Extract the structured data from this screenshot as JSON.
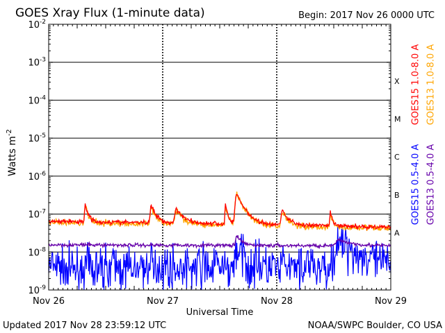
{
  "chart_data": {
    "type": "line",
    "title": "GOES Xray Flux (1-minute data)",
    "begin_label": "Begin:  2017 Nov 26 0000 UTC",
    "xlabel": "Universal Time",
    "ylabel_text": "Watts m",
    "ylabel_sup": "-2",
    "y_scale": "log",
    "ylim": [
      1e-09,
      0.01
    ],
    "y_ticks": [
      {
        "value": 0.01,
        "base": "10",
        "exp": "-2"
      },
      {
        "value": 0.001,
        "base": "10",
        "exp": "-3"
      },
      {
        "value": 0.0001,
        "base": "10",
        "exp": "-4"
      },
      {
        "value": 1e-05,
        "base": "10",
        "exp": "-5"
      },
      {
        "value": 1e-06,
        "base": "10",
        "exp": "-6"
      },
      {
        "value": 1e-07,
        "base": "10",
        "exp": "-7"
      },
      {
        "value": 1e-08,
        "base": "10",
        "exp": "-8"
      },
      {
        "value": 1e-09,
        "base": "10",
        "exp": "-9"
      }
    ],
    "x_ticks": [
      "Nov 26",
      "Nov 27",
      "Nov 28",
      "Nov 29"
    ],
    "flare_classes": [
      {
        "label": "X",
        "value": 0.00032
      },
      {
        "label": "M",
        "value": 3.2e-05
      },
      {
        "label": "C",
        "value": 3.2e-06
      },
      {
        "label": "B",
        "value": 3.2e-07
      },
      {
        "label": "A",
        "value": 3.2e-08
      }
    ],
    "series": [
      {
        "name": "GOES15 1.0-8.0 A",
        "color": "#ff0000",
        "baseline": 6.5e-08,
        "drift": -2e-08,
        "noise": 0.05,
        "events": [
          [
            0.32,
            1.2e-07,
            0.012
          ],
          [
            0.9,
            1.1e-07,
            0.02
          ],
          [
            1.12,
            8e-08,
            0.03
          ],
          [
            1.55,
            1.3e-07,
            0.01
          ],
          [
            1.65,
            2.8e-07,
            0.03
          ],
          [
            2.05,
            7e-08,
            0.025
          ],
          [
            2.47,
            6e-08,
            0.01
          ]
        ]
      },
      {
        "name": "GOES13 1.0-8.0 A",
        "color": "#ffa500",
        "baseline": 6e-08,
        "drift": -1.8e-08,
        "noise": 0.07,
        "events": [
          [
            0.32,
            1.1e-07,
            0.012
          ],
          [
            0.9,
            1e-07,
            0.02
          ],
          [
            1.12,
            7e-08,
            0.03
          ],
          [
            1.55,
            1.2e-07,
            0.01
          ],
          [
            1.65,
            2.6e-07,
            0.03
          ],
          [
            2.05,
            6.5e-08,
            0.025
          ],
          [
            2.47,
            5.5e-08,
            0.01
          ]
        ]
      },
      {
        "name": "GOES15 0.5-4.0 A",
        "color": "#0000ff",
        "baseline": 4e-09,
        "drift": 0,
        "noise": 0.45,
        "events": [
          [
            1.65,
            8e-09,
            0.03
          ],
          [
            2.55,
            1.4e-08,
            0.08
          ]
        ]
      },
      {
        "name": "GOES13 0.5-4.0 A",
        "color": "#6600aa",
        "baseline": 1.55e-08,
        "drift": -1e-09,
        "noise": 0.04,
        "events": [
          [
            1.65,
            1.2e-08,
            0.02
          ],
          [
            2.55,
            6e-09,
            0.06
          ]
        ]
      }
    ]
  },
  "footer": {
    "updated": "Updated 2017 Nov 28 23:59:12 UTC",
    "credit": "NOAA/SWPC Boulder, CO USA"
  }
}
